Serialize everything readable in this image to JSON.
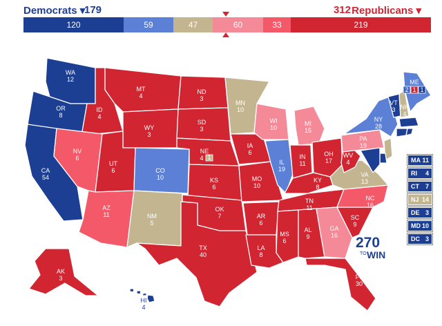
{
  "header": {
    "dem_label": "Democrats ▾",
    "dem_total": "179",
    "rep_total": "312",
    "rep_label": "Republicans ▾"
  },
  "bar": [
    {
      "value": "120",
      "color": "#1c3f94",
      "text": "#ffffff"
    },
    {
      "value": "59",
      "color": "#5b80d6",
      "text": "#ffffff"
    },
    {
      "value": "47",
      "color": "#c2b590",
      "text": "#ffffff"
    },
    {
      "value": "60",
      "color": "#f48a98",
      "text": "#ffffff"
    },
    {
      "value": "33",
      "color": "#f4596a",
      "text": "#ffffff"
    },
    {
      "value": "219",
      "color": "#d22532",
      "text": "#ffffff"
    }
  ],
  "colors": {
    "safe_d": "#1c3f94",
    "likely_d": "#3a64c8",
    "lean_d": "#5b80d6",
    "tossup": "#c2b590",
    "lean_r": "#f48a98",
    "likely_r": "#f4596a",
    "safe_r": "#d22532"
  },
  "states": {
    "WA": {
      "name": "WA",
      "ev": "12",
      "rating": "safe_d"
    },
    "OR": {
      "name": "OR",
      "ev": "8",
      "rating": "safe_d"
    },
    "CA": {
      "name": "CA",
      "ev": "54",
      "rating": "safe_d"
    },
    "ID": {
      "name": "ID",
      "ev": "4",
      "rating": "safe_r"
    },
    "NV": {
      "name": "NV",
      "ev": "6",
      "rating": "likely_r"
    },
    "MT": {
      "name": "MT",
      "ev": "4",
      "rating": "safe_r"
    },
    "WY": {
      "name": "WY",
      "ev": "3",
      "rating": "safe_r"
    },
    "UT": {
      "name": "UT",
      "ev": "6",
      "rating": "safe_r"
    },
    "AZ": {
      "name": "AZ",
      "ev": "11",
      "rating": "likely_r"
    },
    "CO": {
      "name": "CO",
      "ev": "10",
      "rating": "lean_d"
    },
    "NM": {
      "name": "NM",
      "ev": "5",
      "rating": "tossup"
    },
    "ND": {
      "name": "ND",
      "ev": "3",
      "rating": "safe_r"
    },
    "SD": {
      "name": "SD",
      "ev": "3",
      "rating": "safe_r"
    },
    "NE": {
      "name": "NE",
      "ev": "4",
      "ev2": "1",
      "rating": "safe_r"
    },
    "KS": {
      "name": "KS",
      "ev": "6",
      "rating": "safe_r"
    },
    "OK": {
      "name": "OK",
      "ev": "7",
      "rating": "safe_r"
    },
    "TX": {
      "name": "TX",
      "ev": "40",
      "rating": "safe_r"
    },
    "MN": {
      "name": "MN",
      "ev": "10",
      "rating": "tossup"
    },
    "IA": {
      "name": "IA",
      "ev": "6",
      "rating": "safe_r"
    },
    "MO": {
      "name": "MO",
      "ev": "10",
      "rating": "safe_r"
    },
    "AR": {
      "name": "AR",
      "ev": "6",
      "rating": "safe_r"
    },
    "LA": {
      "name": "LA",
      "ev": "8",
      "rating": "safe_r"
    },
    "WI": {
      "name": "WI",
      "ev": "10",
      "rating": "lean_r"
    },
    "IL": {
      "name": "IL",
      "ev": "19",
      "rating": "lean_d"
    },
    "MI": {
      "name": "MI",
      "ev": "15",
      "rating": "lean_r"
    },
    "IN": {
      "name": "IN",
      "ev": "11",
      "rating": "safe_r"
    },
    "OH": {
      "name": "OH",
      "ev": "17",
      "rating": "safe_r"
    },
    "KY": {
      "name": "KY",
      "ev": "8",
      "rating": "safe_r"
    },
    "TN": {
      "name": "TN",
      "ev": "11",
      "rating": "safe_r"
    },
    "MS": {
      "name": "MS",
      "ev": "6",
      "rating": "safe_r"
    },
    "AL": {
      "name": "AL",
      "ev": "9",
      "rating": "safe_r"
    },
    "GA": {
      "name": "GA",
      "ev": "16",
      "rating": "lean_r"
    },
    "FL": {
      "name": "FL",
      "ev": "30",
      "rating": "safe_r"
    },
    "SC": {
      "name": "SC",
      "ev": "9",
      "rating": "safe_r"
    },
    "NC": {
      "name": "NC",
      "ev": "16",
      "rating": "likely_r"
    },
    "VA": {
      "name": "VA",
      "ev": "13",
      "rating": "tossup"
    },
    "WV": {
      "name": "WV",
      "ev": "4",
      "rating": "safe_r"
    },
    "PA": {
      "name": "PA",
      "ev": "19",
      "rating": "lean_r"
    },
    "NY": {
      "name": "NY",
      "ev": "28",
      "rating": "lean_d"
    },
    "VT": {
      "name": "VT",
      "ev": "3",
      "rating": "safe_d"
    },
    "NH": {
      "name": "NH",
      "ev": "4",
      "rating": "tossup"
    },
    "ME": {
      "name": "ME",
      "ev_d": "2",
      "ev_r": "1",
      "ev_d2": "1",
      "rating": "lean_d"
    },
    "MA": {
      "name": "MA",
      "ev": "11",
      "rating": "safe_d"
    },
    "RI": {
      "name": "RI",
      "ev": "4",
      "rating": "safe_d"
    },
    "CT": {
      "name": "CT",
      "ev": "7",
      "rating": "safe_d"
    },
    "NJ": {
      "name": "NJ",
      "ev": "14",
      "rating": "tossup"
    },
    "DE": {
      "name": "DE",
      "ev": "3",
      "rating": "safe_d"
    },
    "MD": {
      "name": "MD",
      "ev": "10",
      "rating": "safe_d"
    },
    "DC": {
      "name": "DC",
      "ev": "3",
      "rating": "safe_d"
    },
    "AK": {
      "name": "AK",
      "ev": "3",
      "rating": "safe_r"
    },
    "HI": {
      "name": "HI",
      "ev": "4",
      "rating": "safe_d"
    }
  },
  "logo": {
    "num": "270",
    "to": "TO",
    "win": "WIN"
  }
}
